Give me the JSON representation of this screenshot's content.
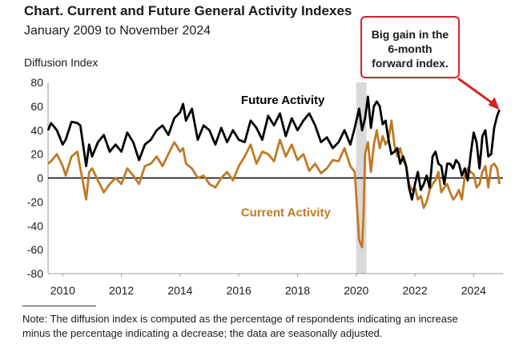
{
  "chart_data": {
    "type": "line",
    "title": "Chart. Current and Future General Activity Indexes",
    "subtitle": "January 2009 to November 2024",
    "ylabel": "Diffusion Index",
    "ylim": [
      -80,
      80
    ],
    "yticks": [
      80,
      60,
      40,
      20,
      0,
      -20,
      -40,
      -60,
      -80
    ],
    "xlim": [
      2009.5,
      2025.0
    ],
    "xticks": [
      2010,
      2012,
      2014,
      2016,
      2018,
      2020,
      2022,
      2024
    ],
    "shaded_period": [
      2020.0,
      2020.35
    ],
    "series": [
      {
        "name": "Future Activity",
        "color": "#000000",
        "label_text": "Future Activity",
        "x": [
          2009.5,
          2009.6,
          2009.8,
          2010.0,
          2010.1,
          2010.3,
          2010.5,
          2010.6,
          2010.8,
          2010.9,
          2011.0,
          2011.2,
          2011.4,
          2011.6,
          2011.8,
          2012.0,
          2012.2,
          2012.4,
          2012.6,
          2012.8,
          2013.0,
          2013.2,
          2013.4,
          2013.6,
          2013.8,
          2014.0,
          2014.1,
          2014.2,
          2014.4,
          2014.6,
          2014.8,
          2015.0,
          2015.2,
          2015.4,
          2015.6,
          2015.8,
          2016.0,
          2016.2,
          2016.4,
          2016.6,
          2016.8,
          2017.0,
          2017.2,
          2017.4,
          2017.6,
          2017.8,
          2018.0,
          2018.2,
          2018.4,
          2018.6,
          2018.8,
          2019.0,
          2019.2,
          2019.4,
          2019.6,
          2019.8,
          2019.95,
          2020.1,
          2020.2,
          2020.3,
          2020.4,
          2020.5,
          2020.6,
          2020.7,
          2020.8,
          2020.9,
          2021.0,
          2021.1,
          2021.2,
          2021.3,
          2021.4,
          2021.5,
          2021.6,
          2021.7,
          2021.8,
          2021.9,
          2022.0,
          2022.1,
          2022.2,
          2022.3,
          2022.4,
          2022.5,
          2022.6,
          2022.7,
          2022.8,
          2022.9,
          2023.0,
          2023.1,
          2023.2,
          2023.3,
          2023.4,
          2023.5,
          2023.6,
          2023.7,
          2023.8,
          2023.9,
          2024.0,
          2024.1,
          2024.2,
          2024.3,
          2024.4,
          2024.5,
          2024.6,
          2024.7,
          2024.8,
          2024.88
        ],
        "values": [
          40,
          46,
          40,
          28,
          32,
          47,
          46,
          44,
          10,
          28,
          18,
          30,
          36,
          22,
          28,
          22,
          38,
          30,
          15,
          28,
          32,
          40,
          44,
          36,
          50,
          55,
          62,
          48,
          58,
          32,
          44,
          40,
          28,
          42,
          30,
          40,
          32,
          30,
          48,
          42,
          32,
          52,
          44,
          54,
          35,
          50,
          40,
          48,
          54,
          44,
          30,
          34,
          25,
          30,
          40,
          28,
          42,
          58,
          40,
          50,
          68,
          42,
          60,
          64,
          60,
          45,
          48,
          32,
          20,
          22,
          25,
          12,
          18,
          10,
          -8,
          -18,
          -5,
          5,
          -10,
          -5,
          2,
          -8,
          18,
          22,
          12,
          10,
          -5,
          12,
          12,
          8,
          15,
          12,
          2,
          8,
          -2,
          20,
          38,
          30,
          8,
          35,
          40,
          18,
          20,
          42,
          52,
          57
        ],
        "label_pos": [
          2017.5,
          62
        ]
      },
      {
        "name": "Current Activity",
        "color": "#c07a24",
        "label_text": "Current Activity",
        "x": [
          2009.5,
          2009.6,
          2009.8,
          2010.0,
          2010.1,
          2010.3,
          2010.5,
          2010.6,
          2010.8,
          2010.9,
          2011.0,
          2011.2,
          2011.4,
          2011.6,
          2011.8,
          2012.0,
          2012.2,
          2012.4,
          2012.6,
          2012.8,
          2013.0,
          2013.2,
          2013.4,
          2013.6,
          2013.8,
          2014.0,
          2014.1,
          2014.2,
          2014.4,
          2014.6,
          2014.8,
          2015.0,
          2015.2,
          2015.4,
          2015.6,
          2015.8,
          2016.0,
          2016.2,
          2016.4,
          2016.6,
          2016.8,
          2017.0,
          2017.2,
          2017.4,
          2017.6,
          2017.8,
          2018.0,
          2018.2,
          2018.4,
          2018.6,
          2018.8,
          2019.0,
          2019.2,
          2019.4,
          2019.6,
          2019.8,
          2019.95,
          2020.1,
          2020.2,
          2020.25,
          2020.3,
          2020.4,
          2020.5,
          2020.6,
          2020.7,
          2020.8,
          2020.9,
          2021.0,
          2021.1,
          2021.2,
          2021.3,
          2021.4,
          2021.5,
          2021.6,
          2021.7,
          2021.8,
          2021.9,
          2022.0,
          2022.1,
          2022.2,
          2022.3,
          2022.4,
          2022.5,
          2022.6,
          2022.7,
          2022.8,
          2022.9,
          2023.0,
          2023.1,
          2023.2,
          2023.3,
          2023.4,
          2023.5,
          2023.6,
          2023.7,
          2023.8,
          2023.9,
          2024.0,
          2024.1,
          2024.2,
          2024.3,
          2024.4,
          2024.5,
          2024.6,
          2024.7,
          2024.8,
          2024.88
        ],
        "values": [
          12,
          14,
          20,
          10,
          2,
          18,
          22,
          8,
          -18,
          5,
          8,
          -2,
          -12,
          -5,
          0,
          -5,
          8,
          2,
          -5,
          10,
          12,
          18,
          10,
          20,
          30,
          22,
          25,
          12,
          8,
          0,
          2,
          -5,
          -8,
          0,
          5,
          -2,
          10,
          18,
          28,
          12,
          22,
          20,
          14,
          32,
          18,
          28,
          15,
          20,
          6,
          12,
          4,
          8,
          15,
          14,
          25,
          10,
          5,
          -52,
          -58,
          -30,
          20,
          30,
          5,
          28,
          40,
          25,
          35,
          28,
          32,
          48,
          28,
          18,
          25,
          15,
          10,
          -5,
          -10,
          -8,
          -18,
          -15,
          -25,
          -20,
          -10,
          -5,
          -2,
          5,
          -12,
          -8,
          -5,
          -12,
          -18,
          -15,
          -10,
          -18,
          2,
          8,
          5,
          3,
          -8,
          -5,
          5,
          10,
          -8,
          10,
          12,
          8,
          -5
        ],
        "label_pos": [
          2017.6,
          -32
        ]
      }
    ],
    "callout": {
      "lines": [
        "Big gain in the",
        "6-month",
        "forward index."
      ],
      "points_to": [
        2024.88,
        57
      ]
    },
    "note_lines": [
      "Note: The diffusion index is computed as the percentage of respondents indicating an increase",
      "minus the percentage indicating a decrease; the data are seasonally adjusted."
    ]
  }
}
